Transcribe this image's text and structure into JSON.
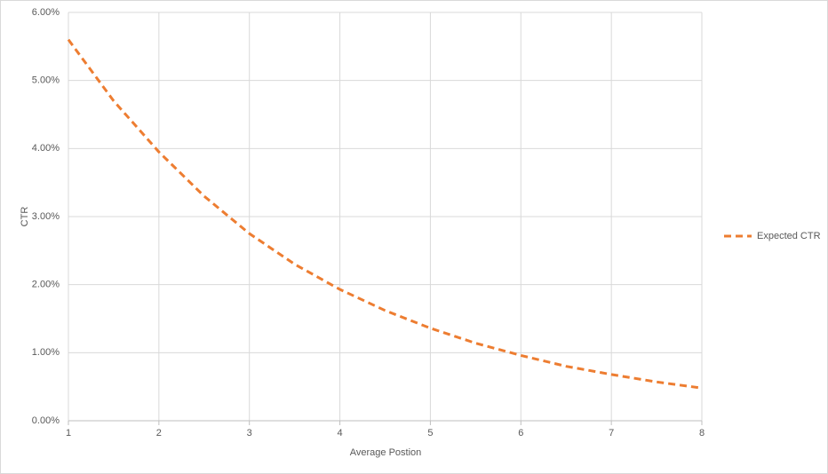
{
  "chart_data": {
    "type": "line",
    "x_label": "Average Postion",
    "y_label": "CTR",
    "x": [
      1,
      1.5,
      2,
      2.5,
      3,
      3.5,
      4,
      4.5,
      5,
      5.5,
      6,
      6.5,
      7,
      7.5,
      8
    ],
    "series": [
      {
        "name": "Expected CTR",
        "color": "#ed7d31",
        "values": [
          5.6,
          4.7,
          3.95,
          3.3,
          2.75,
          2.3,
          1.93,
          1.62,
          1.36,
          1.14,
          0.96,
          0.8,
          0.68,
          0.57,
          0.48
        ]
      }
    ],
    "xlim": [
      1,
      8
    ],
    "xticks": [
      1,
      2,
      3,
      4,
      5,
      6,
      7,
      8
    ],
    "ylim": [
      0,
      6
    ],
    "yticks": [
      {
        "value": 0,
        "label": "0.00%"
      },
      {
        "value": 1,
        "label": "1.00%"
      },
      {
        "value": 2,
        "label": "2.00%"
      },
      {
        "value": 3,
        "label": "3.00%"
      },
      {
        "value": 4,
        "label": "4.00%"
      },
      {
        "value": 5,
        "label": "5.00%"
      },
      {
        "value": 6,
        "label": "6.00%"
      }
    ],
    "grid": true,
    "legend": "right"
  }
}
